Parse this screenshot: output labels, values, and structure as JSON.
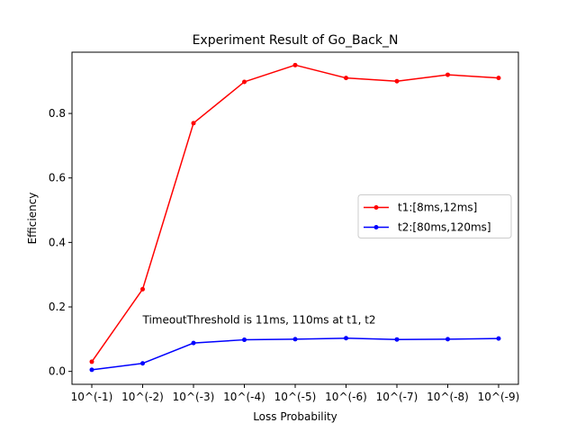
{
  "chart_data": {
    "type": "line",
    "title": "Experiment Result of Go_Back_N",
    "xlabel": "Loss Probability",
    "ylabel": "Efficiency",
    "categories": [
      "10^(-1)",
      "10^(-2)",
      "10^(-3)",
      "10^(-4)",
      "10^(-5)",
      "10^(-6)",
      "10^(-7)",
      "10^(-8)",
      "10^(-9)"
    ],
    "ylim": [
      -0.04,
      0.99
    ],
    "yticks": [
      0.0,
      0.2,
      0.4,
      0.6,
      0.8
    ],
    "ytick_labels": [
      "0.0",
      "0.2",
      "0.4",
      "0.6",
      "0.8"
    ],
    "grid": false,
    "legend_position": "center-right",
    "series": [
      {
        "name": "t1:[8ms,12ms]",
        "color": "#ff0000",
        "marker": "circle",
        "values": [
          0.03,
          0.255,
          0.77,
          0.898,
          0.95,
          0.91,
          0.9,
          0.92,
          0.91
        ]
      },
      {
        "name": "t2:[80ms,120ms]",
        "color": "#0000ff",
        "marker": "circle",
        "values": [
          0.005,
          0.025,
          0.088,
          0.098,
          0.1,
          0.103,
          0.099,
          0.1,
          0.102
        ]
      }
    ],
    "annotations": [
      {
        "text": "TimeoutThreshold is 11ms, 110ms at t1, t2",
        "x_category": "10^(-2)",
        "y": 0.16
      }
    ]
  }
}
